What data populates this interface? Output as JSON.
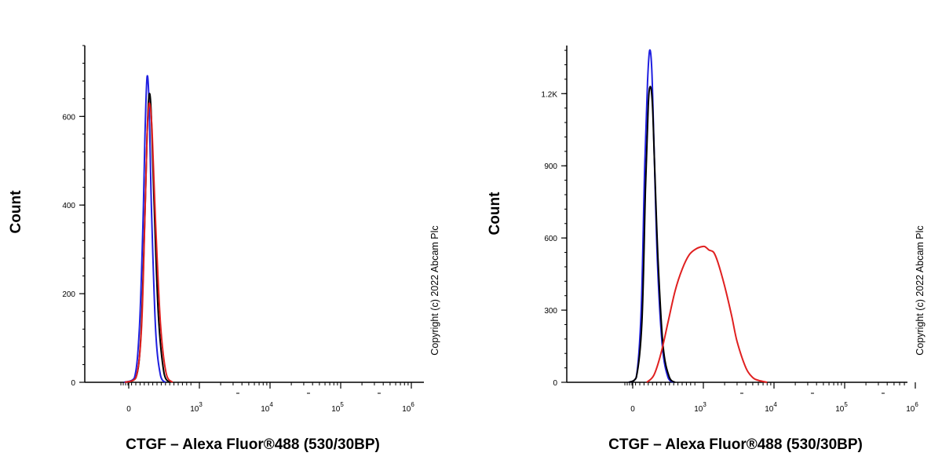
{
  "chart_data": [
    {
      "type": "line",
      "ylabel": "Count",
      "xlabel": "CTGF – Alexa Fluor®488 (530/30BP)",
      "copyright": "Copyright (c) 2022 Abcam Plc",
      "x_scale": "biexponential",
      "y_ticks": [
        {
          "value": 0,
          "label": "0"
        },
        {
          "value": 200,
          "label": "200"
        },
        {
          "value": 400,
          "label": "400"
        },
        {
          "value": 600,
          "label": "600"
        }
      ],
      "ylim": [
        0,
        760
      ],
      "x_ticks": [
        {
          "value": 0,
          "base": "0",
          "exp": ""
        },
        {
          "value": 1000,
          "base": "10",
          "exp": "3"
        },
        {
          "value": 10000,
          "base": "10",
          "exp": "4"
        },
        {
          "value": 100000,
          "base": "10",
          "exp": "5"
        },
        {
          "value": 1000000,
          "base": "10",
          "exp": "6"
        }
      ],
      "series": [
        {
          "color": "#2020e0",
          "x": [
            -120,
            80,
            150,
            200,
            230,
            260,
            290,
            320,
            380,
            450,
            520
          ],
          "y": [
            0,
            10,
            120,
            350,
            560,
            690,
            620,
            400,
            120,
            15,
            0
          ]
        },
        {
          "color": "#000000",
          "x": [
            -100,
            100,
            170,
            220,
            260,
            290,
            320,
            360,
            420,
            500,
            580
          ],
          "y": [
            0,
            10,
            100,
            330,
            560,
            650,
            600,
            400,
            150,
            20,
            0
          ]
        },
        {
          "color": "#e02020",
          "x": [
            -100,
            100,
            180,
            230,
            260,
            290,
            330,
            380,
            450,
            530,
            620
          ],
          "y": [
            0,
            10,
            120,
            380,
            560,
            630,
            570,
            360,
            130,
            20,
            0
          ]
        }
      ]
    },
    {
      "type": "line",
      "ylabel": "Count",
      "xlabel": "CTGF – Alexa Fluor®488 (530/30BP)",
      "copyright": "Copyright (c) 2022 Abcam Plc",
      "x_scale": "biexponential",
      "y_ticks": [
        {
          "value": 0,
          "label": "0"
        },
        {
          "value": 300,
          "label": "300"
        },
        {
          "value": 600,
          "label": "600"
        },
        {
          "value": 900,
          "label": "900"
        },
        {
          "value": 1200,
          "label": "1.2K"
        }
      ],
      "ylim": [
        0,
        1400
      ],
      "x_ticks": [
        {
          "value": 0,
          "base": "0",
          "exp": ""
        },
        {
          "value": 1000,
          "base": "10",
          "exp": "3"
        },
        {
          "value": 10000,
          "base": "10",
          "exp": "4"
        },
        {
          "value": 100000,
          "base": "10",
          "exp": "5"
        },
        {
          "value": 1000000,
          "base": "10",
          "exp": "6"
        }
      ],
      "series": [
        {
          "color": "#2020e0",
          "x": [
            -100,
            50,
            120,
            170,
            210,
            240,
            270,
            300,
            350,
            420,
            500,
            580
          ],
          "y": [
            0,
            20,
            300,
            900,
            1250,
            1380,
            1300,
            1000,
            500,
            150,
            20,
            0
          ]
        },
        {
          "color": "#000000",
          "x": [
            -100,
            50,
            130,
            180,
            220,
            250,
            280,
            310,
            360,
            430,
            520,
            600
          ],
          "y": [
            0,
            20,
            250,
            800,
            1150,
            1230,
            1150,
            900,
            500,
            150,
            20,
            0
          ]
        },
        {
          "color": "#e02020",
          "x": [
            200,
            300,
            400,
            500,
            600,
            700,
            800,
            900,
            1000,
            1100,
            1200,
            1400,
            1600,
            2000,
            2500,
            3000,
            4000,
            5000,
            6000,
            8000
          ],
          "y": [
            0,
            30,
            120,
            250,
            380,
            470,
            530,
            555,
            565,
            560,
            550,
            540,
            500,
            400,
            280,
            170,
            60,
            20,
            8,
            0
          ]
        }
      ]
    }
  ]
}
